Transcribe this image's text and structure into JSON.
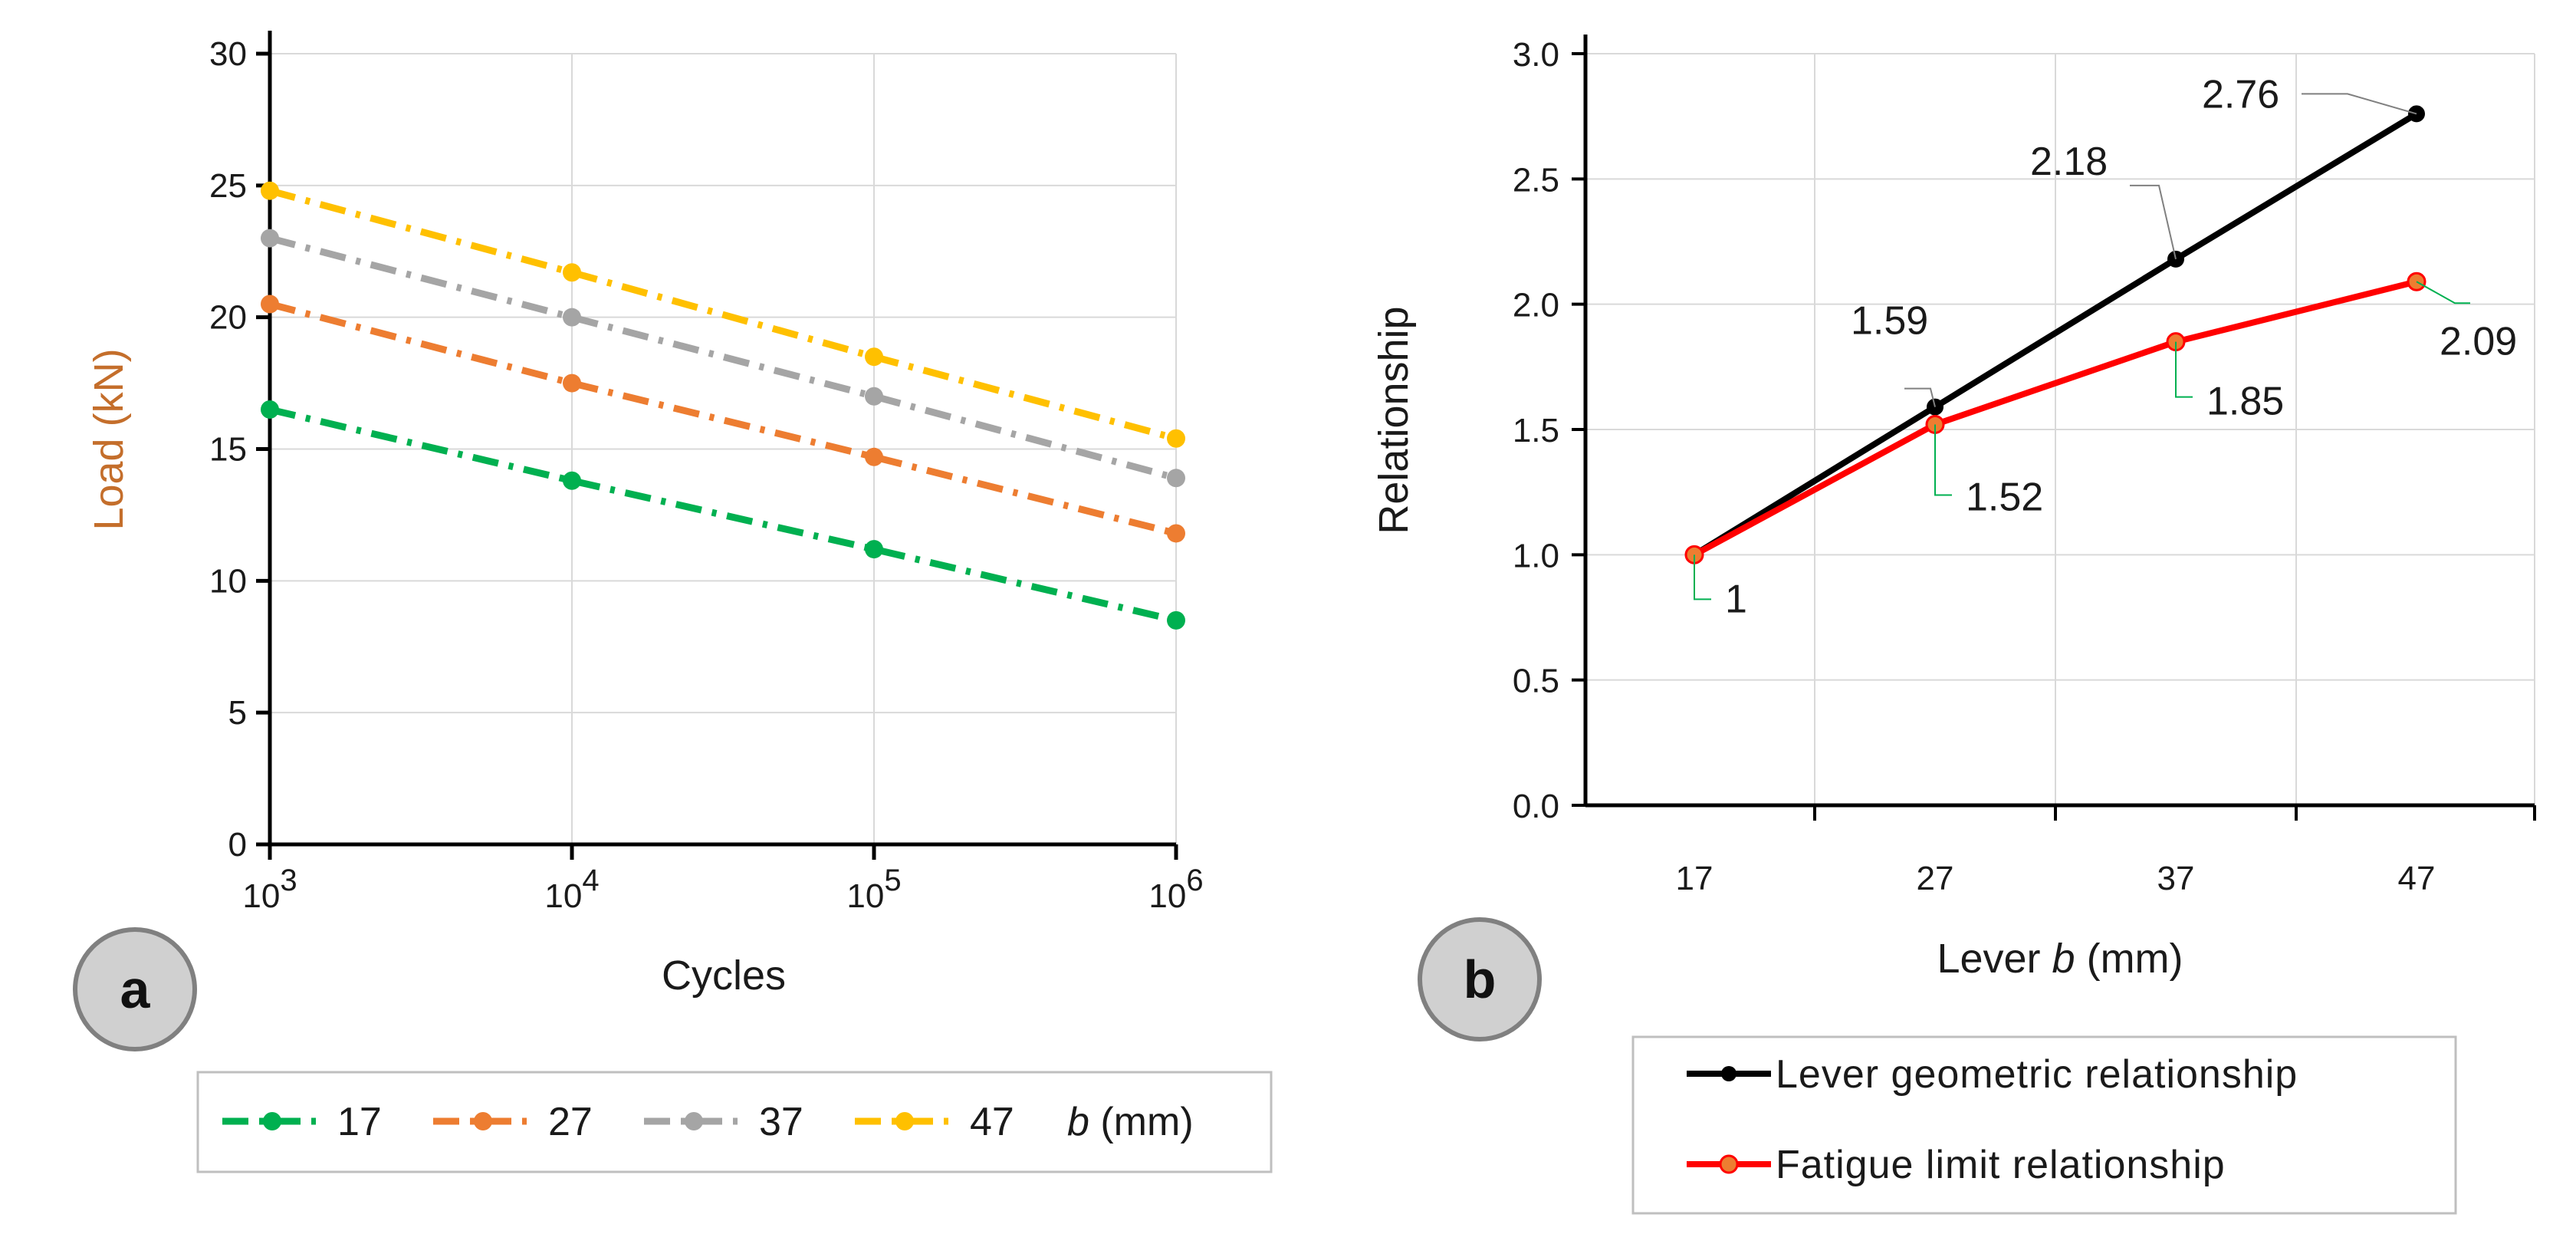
{
  "chart_data": [
    {
      "type": "line",
      "panel": "a",
      "xlabel": "Cycles",
      "ylabel": "Load (kN)",
      "x_scale": "log",
      "x": [
        1000,
        10000,
        100000,
        1000000
      ],
      "x_tick_labels": [
        {
          "base": "10",
          "exp": "3"
        },
        {
          "base": "10",
          "exp": "4"
        },
        {
          "base": "10",
          "exp": "5"
        },
        {
          "base": "10",
          "exp": "6"
        }
      ],
      "ylim": [
        0,
        30
      ],
      "y_ticks": [
        0,
        5,
        10,
        15,
        20,
        25,
        30
      ],
      "legend_title_var": "b",
      "legend_title_unit": " (mm)",
      "series": [
        {
          "name": "17",
          "color": "#00b050",
          "values": [
            16.5,
            13.8,
            11.2,
            8.5
          ]
        },
        {
          "name": "27",
          "color": "#ed7d31",
          "values": [
            20.5,
            17.5,
            14.7,
            11.8
          ]
        },
        {
          "name": "37",
          "color": "#a5a5a5",
          "values": [
            23.0,
            20.0,
            17.0,
            13.9
          ]
        },
        {
          "name": "47",
          "color": "#ffc000",
          "values": [
            24.8,
            21.7,
            18.5,
            15.4
          ]
        }
      ]
    },
    {
      "type": "line",
      "panel": "b",
      "xlabel_prefix": "Lever ",
      "xlabel_var": "b",
      "xlabel_suffix": " (mm)",
      "ylabel": "Relationship",
      "categories": [
        "17",
        "27",
        "37",
        "47"
      ],
      "ylim": [
        0,
        3
      ],
      "y_tick_labels": [
        "0.0",
        "0.5",
        "1.0",
        "1.5",
        "2.0",
        "2.5",
        "3.0"
      ],
      "series": [
        {
          "name": "Lever geometric relationship",
          "color": "#000000",
          "values": [
            1,
            1.59,
            2.18,
            2.76
          ],
          "labels": [
            "",
            "1.59",
            "2.18",
            "2.76"
          ]
        },
        {
          "name": "Fatigue limit relationship",
          "color": "#ff0000",
          "values": [
            1,
            1.52,
            1.85,
            2.09
          ],
          "labels": [
            "1",
            "1.52",
            "1.85",
            "2.09"
          ]
        }
      ]
    }
  ],
  "badges": {
    "a": "a",
    "b": "b"
  }
}
